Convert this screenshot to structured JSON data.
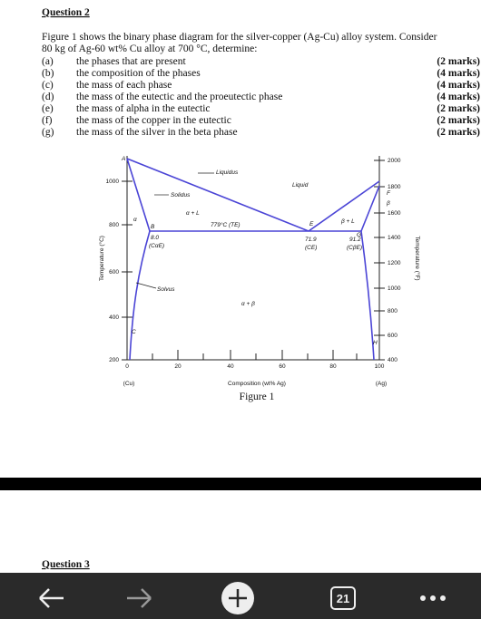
{
  "question": {
    "title": "Question 2",
    "intro": [
      "Figure 1 shows the binary phase diagram for the silver-copper (Ag-Cu) alloy system. Consider",
      "80 kg of Ag-60 wt% Cu alloy at 700 °C, determine:"
    ],
    "items": [
      {
        "label": "(a)",
        "text": "the phases that are present",
        "marks": "(2 marks)"
      },
      {
        "label": "(b)",
        "text": "the composition of the phases",
        "marks": "(4 marks)"
      },
      {
        "label": "(c)",
        "text": "the mass of each phase",
        "marks": "(4 marks)"
      },
      {
        "label": "(d)",
        "text": "the mass of the eutectic and the proeutectic phase",
        "marks": "(4 marks)"
      },
      {
        "label": "(e)",
        "text": "the mass of alpha in the eutectic",
        "marks": "(2 marks)"
      },
      {
        "label": "(f)",
        "text": "the mass of the copper in the eutectic",
        "marks": "(2 marks)"
      },
      {
        "label": "(g)",
        "text": "the mass of the silver in the beta phase",
        "marks": "(2 marks)"
      }
    ]
  },
  "figure": {
    "left_ticks": [
      "1000",
      "800",
      "600",
      "400",
      "200"
    ],
    "right_ticks": [
      "2000",
      "1800",
      "1600",
      "1400",
      "1200",
      "1000",
      "800",
      "600",
      "400"
    ],
    "x_ticks": [
      "0",
      "20",
      "40",
      "60",
      "80",
      "100"
    ],
    "left_axis_title": "Temperature (°C)",
    "right_axis_title": "Temperature (°F)",
    "x_axis_title": "Composition (wt% Ag)",
    "x_end_labels": [
      "(Cu)",
      "(Ag)"
    ],
    "labels": [
      "A",
      "Liquidus",
      "Liquid",
      "Solidus",
      "α + L",
      "779°C (TE)",
      "E",
      "β + L",
      "G",
      "F",
      "β",
      "α",
      "B",
      "8.0",
      "(CαE)",
      "71.9",
      "(CE)",
      "91.2",
      "(CβE)",
      "Solvus",
      "α + β",
      "C",
      "H"
    ],
    "caption": "Figure 1"
  },
  "next_question": "Question 3",
  "nav": {
    "tab_count": "21"
  }
}
